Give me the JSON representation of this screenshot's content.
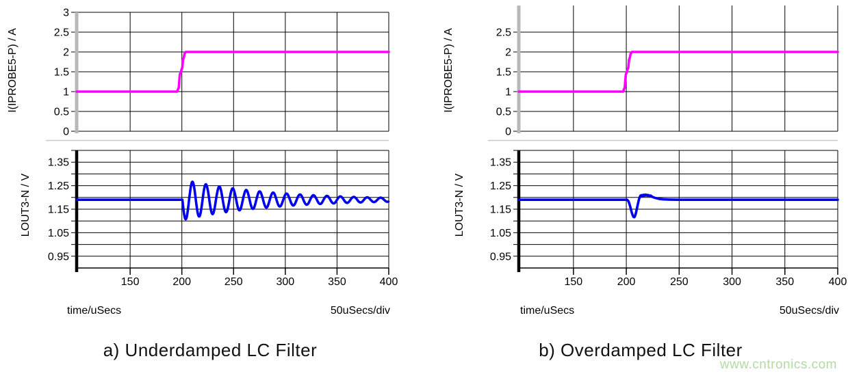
{
  "watermark": {
    "text": "www.cntronics.com",
    "color": "#b3d9a6"
  },
  "colors": {
    "background": "#ffffff",
    "grid": "#000000",
    "separator": "#c8c8c8",
    "top_axis": "#b8b8b8",
    "bottom_axis": "#000000",
    "current_trace": "#ff00ff",
    "voltage_trace": "#0000ee",
    "text": "#000000"
  },
  "chart_data": [
    {
      "type": "line",
      "caption": "a) Underdamped LC Filter",
      "x_axis": {
        "label": "time/uSecs",
        "scale_label": "50uSecs/div",
        "min": 98.3,
        "max": 400,
        "ticks": [
          150,
          200,
          250,
          300,
          350,
          400
        ],
        "tick_labels": [
          "150",
          "200",
          "250",
          "300",
          "350",
          "400"
        ]
      },
      "panels": [
        {
          "ylabel": "I(IPROBE5-P) / A",
          "ymin": 0,
          "ymax": 3.0,
          "ygrid": [
            0,
            0.5,
            1,
            1.5,
            2,
            2.5,
            3
          ],
          "yticks": [
            0,
            0.5,
            1,
            1.5,
            2,
            2.5,
            3
          ],
          "ytick_labels": [
            "0",
            "0.5",
            "1",
            "1.5",
            "2",
            "2.5",
            "3"
          ],
          "axis_color": "#b8b8b8",
          "series": [
            {
              "name": "I(IPROBE5-P)",
              "color": "#ff00ff",
              "mode": "breakpoints",
              "points": [
                [
                  98.3,
                  1
                ],
                [
                  195.5,
                  1
                ],
                [
                  196.3,
                  1.06
                ],
                [
                  197,
                  1.1
                ],
                [
                  197.6,
                  1.3
                ],
                [
                  198.1,
                  1.44
                ],
                [
                  198.9,
                  1.48
                ],
                [
                  199.7,
                  1.56
                ],
                [
                  200.4,
                  1.6
                ],
                [
                  201.1,
                  1.8
                ],
                [
                  201.9,
                  1.86
                ],
                [
                  202.6,
                  1.95
                ],
                [
                  203.6,
                  2
                ],
                [
                  400,
                  2
                ]
              ]
            }
          ]
        },
        {
          "ylabel": "LOUT3-N / V",
          "ymin": 0.9,
          "ymax": 1.4,
          "ygrid": [
            0.95,
            1.0,
            1.05,
            1.1,
            1.15,
            1.2,
            1.25,
            1.3,
            1.35,
            1.4
          ],
          "yticks": [
            0.95,
            1.05,
            1.15,
            1.25,
            1.35
          ],
          "ytick_labels": [
            "0.95",
            "1.05",
            "1.15",
            "1.25",
            "1.35"
          ],
          "axis_color": "#000000",
          "series": [
            {
              "name": "LOUT3-N",
              "color": "#0000ee",
              "mode": "ringing",
              "baseline": 1.19,
              "step_time": 200.5,
              "amplitude": 0.086,
              "decay_tau_us": 85,
              "period_us": 13,
              "end": 400
            }
          ]
        }
      ]
    },
    {
      "type": "line",
      "caption": "b) Overdamped LC Filter",
      "x_axis": {
        "label": "time/uSecs",
        "scale_label": "50uSecs/div",
        "min": 98.3,
        "max": 400,
        "ticks": [
          150,
          200,
          250,
          300,
          350,
          400
        ],
        "tick_labels": [
          "150",
          "200",
          "250",
          "300",
          "350",
          "400"
        ]
      },
      "panels": [
        {
          "ylabel": "I(IPROBE5-P) / A",
          "ymin": 0,
          "ymax": 3.17,
          "ygrid": [
            0,
            0.5,
            1,
            1.5,
            2,
            2.5
          ],
          "yticks": [
            0,
            0.5,
            1,
            1.5,
            2,
            2.5
          ],
          "ytick_labels": [
            "0",
            "0.5",
            "1",
            "1.5",
            "2",
            "2.5"
          ],
          "axis_color": "#b8b8b8",
          "series": [
            {
              "name": "I(IPROBE5-P)",
              "color": "#ff00ff",
              "mode": "breakpoints",
              "points": [
                [
                  98.3,
                  1
                ],
                [
                  197,
                  1
                ],
                [
                  197.8,
                  1.06
                ],
                [
                  198.5,
                  1.1
                ],
                [
                  199.1,
                  1.3
                ],
                [
                  199.6,
                  1.44
                ],
                [
                  200.4,
                  1.48
                ],
                [
                  201.2,
                  1.56
                ],
                [
                  201.9,
                  1.6
                ],
                [
                  202.6,
                  1.8
                ],
                [
                  203.4,
                  1.86
                ],
                [
                  204.1,
                  1.95
                ],
                [
                  205.1,
                  2
                ],
                [
                  400,
                  2
                ]
              ]
            }
          ]
        },
        {
          "ylabel": "LOUT3-N / V",
          "ymin": 0.9,
          "ymax": 1.4,
          "ygrid": [
            0.95,
            1.0,
            1.05,
            1.1,
            1.15,
            1.2,
            1.25,
            1.3,
            1.35,
            1.4
          ],
          "yticks": [
            0.95,
            1.05,
            1.15,
            1.25,
            1.35
          ],
          "ytick_labels": [
            "0.95",
            "1.05",
            "1.15",
            "1.25",
            "1.35"
          ],
          "axis_color": "#000000",
          "series": [
            {
              "name": "LOUT3-N",
              "color": "#0000ee",
              "mode": "breakpoints",
              "points": [
                [
                  98.3,
                  1.19
                ],
                [
                  200.8,
                  1.19
                ],
                [
                  202,
                  1.184
                ],
                [
                  203,
                  1.172
                ],
                [
                  204,
                  1.156
                ],
                [
                  205,
                  1.138
                ],
                [
                  206,
                  1.124
                ],
                [
                  206.8,
                  1.117
                ],
                [
                  207.5,
                  1.116
                ],
                [
                  208.2,
                  1.12
                ],
                [
                  209,
                  1.132
                ],
                [
                  210,
                  1.152
                ],
                [
                  211,
                  1.173
                ],
                [
                  212,
                  1.192
                ],
                [
                  212.8,
                  1.203
                ],
                [
                  213.5,
                  1.208
                ],
                [
                  214.2,
                  1.204
                ],
                [
                  214.8,
                  1.21
                ],
                [
                  215.5,
                  1.206
                ],
                [
                  216.2,
                  1.211
                ],
                [
                  217,
                  1.207
                ],
                [
                  217.8,
                  1.212
                ],
                [
                  218.6,
                  1.208
                ],
                [
                  219.4,
                  1.211
                ],
                [
                  220.2,
                  1.207
                ],
                [
                  221,
                  1.21
                ],
                [
                  222,
                  1.206
                ],
                [
                  223,
                  1.208
                ],
                [
                  224.5,
                  1.203
                ],
                [
                  226,
                  1.2
                ],
                [
                  228,
                  1.197
                ],
                [
                  231,
                  1.194
                ],
                [
                  235,
                  1.192
                ],
                [
                  240,
                  1.191
                ],
                [
                  248,
                  1.19
                ],
                [
                  400,
                  1.19
                ]
              ]
            }
          ]
        }
      ]
    }
  ]
}
